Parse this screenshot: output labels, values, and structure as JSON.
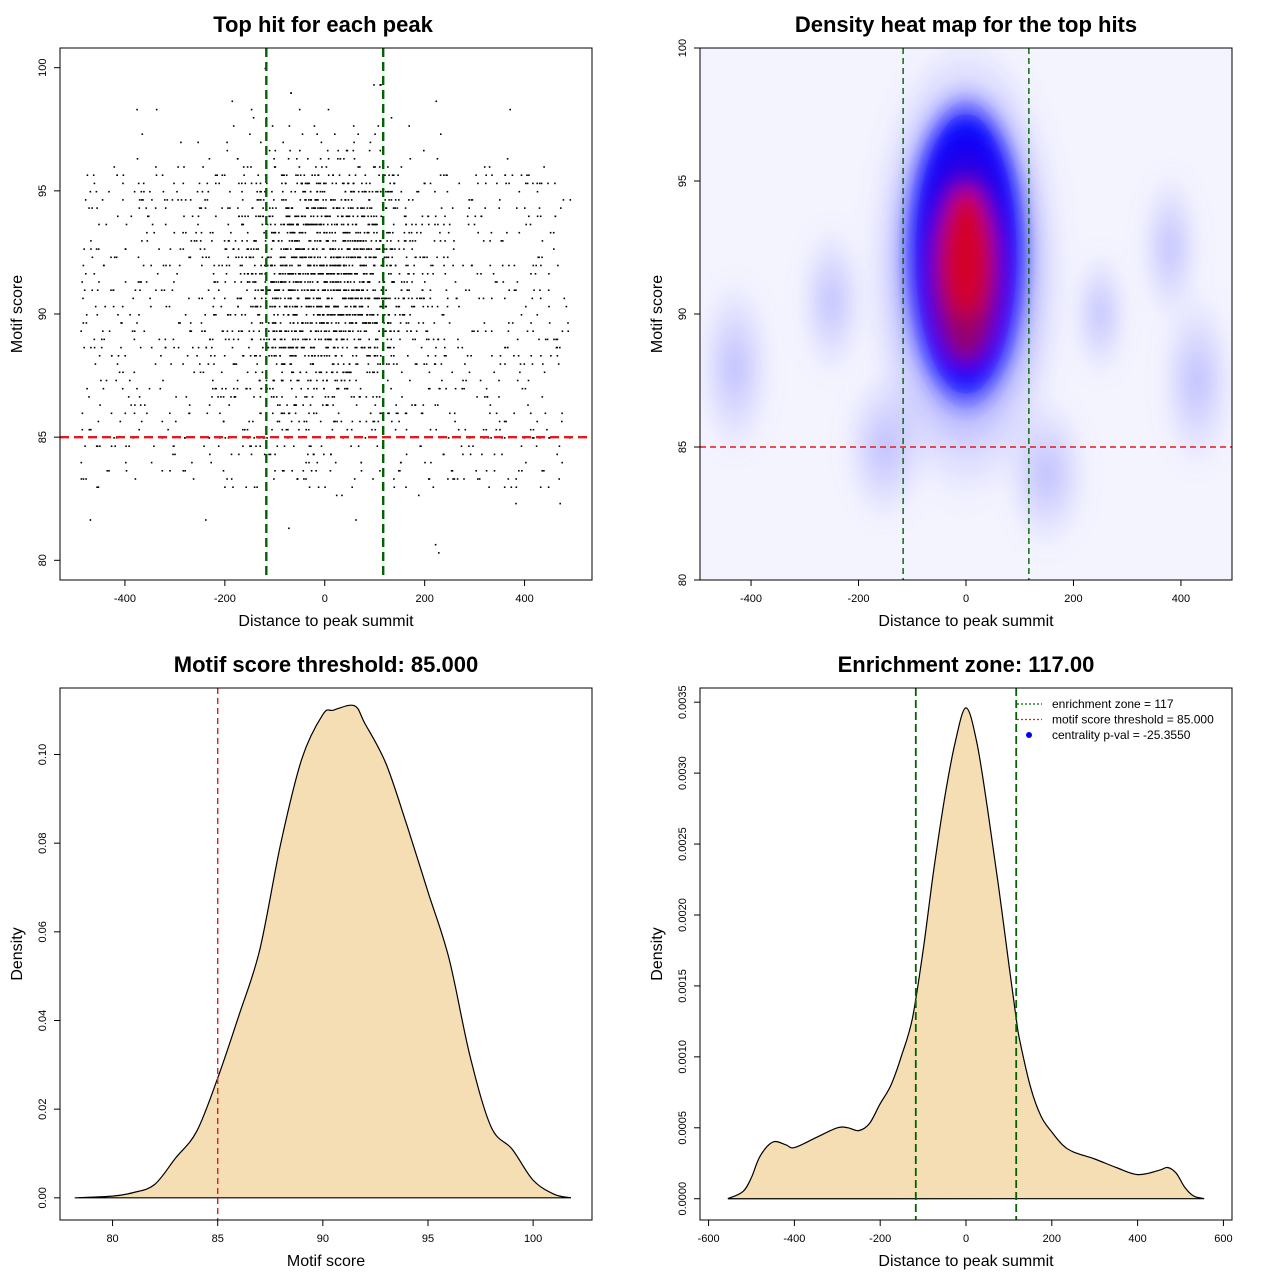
{
  "chart_data": [
    {
      "type": "scatter",
      "title": "Top hit for each peak",
      "xlabel": "Distance to peak summit",
      "ylabel": "Motif score",
      "xlim": [
        -530,
        535
      ],
      "ylim": [
        79.2,
        100.8
      ],
      "xticks": [
        -400,
        -200,
        0,
        200,
        400
      ],
      "xtick_labels": [
        "-400",
        "-200",
        "0",
        "200",
        "400"
      ],
      "yticks": [
        80,
        85,
        90,
        95,
        100
      ],
      "ytick_labels": [
        "80",
        "85",
        "90",
        "95",
        "100"
      ],
      "point_count": 2600,
      "point_distribution": {
        "center_x": 0,
        "sd_x": 95,
        "center_y": 91.5,
        "sd_y": 2.6,
        "background_fraction": 0.42
      },
      "vlines": [
        -117,
        117
      ],
      "hline": 85,
      "colors": {
        "points": "#000000",
        "vline": "#006400",
        "hline": "#e41a1c"
      }
    },
    {
      "type": "heatmap",
      "title": "Density heat map for the top hits",
      "xlabel": "Distance to peak summit",
      "ylabel": "Motif score",
      "xlim": [
        -495,
        495
      ],
      "ylim": [
        80,
        100
      ],
      "xticks": [
        -400,
        -200,
        0,
        200,
        400
      ],
      "xtick_labels": [
        "-400",
        "-200",
        "0",
        "200",
        "400"
      ],
      "yticks": [
        80,
        85,
        90,
        95,
        100
      ],
      "ytick_labels": [
        "80",
        "85",
        "90",
        "95",
        "100"
      ],
      "density_peak": {
        "x": 0,
        "y": 92.3
      },
      "colormap": [
        "#ffffff",
        "#0000ff",
        "#ff0000"
      ],
      "vlines": [
        -117,
        117
      ],
      "hline": 85,
      "colors": {
        "vline": "#006400",
        "hline": "#e41a1c"
      }
    },
    {
      "type": "area",
      "title": "Motif score threshold: 85.000",
      "xlabel": "Motif score",
      "ylabel": "Density",
      "xlim": [
        77.5,
        102.8
      ],
      "ylim": [
        -0.005,
        0.115
      ],
      "xticks": [
        80,
        85,
        90,
        95,
        100
      ],
      "xtick_labels": [
        "80",
        "85",
        "90",
        "95",
        "100"
      ],
      "yticks": [
        0,
        0.02,
        0.04,
        0.06,
        0.08,
        0.1
      ],
      "ytick_labels": [
        "0.00",
        "0.02",
        "0.04",
        "0.06",
        "0.08",
        "0.10"
      ],
      "x": [
        78.2,
        80,
        81,
        82,
        83,
        84,
        85,
        86,
        87,
        88,
        89,
        90,
        90.5,
        91.5,
        92,
        93,
        94,
        95,
        96,
        97,
        98,
        99,
        100,
        101,
        101.8
      ],
      "y": [
        0,
        0.0004,
        0.0012,
        0.003,
        0.009,
        0.015,
        0.027,
        0.041,
        0.056,
        0.08,
        0.099,
        0.109,
        0.11,
        0.111,
        0.107,
        0.098,
        0.084,
        0.069,
        0.054,
        0.032,
        0.016,
        0.011,
        0.004,
        0.0008,
        0
      ],
      "vline": 85,
      "colors": {
        "fill": "#f5deb3",
        "line": "#000000",
        "vline": "#e41a1c"
      }
    },
    {
      "type": "area",
      "title": "Enrichment zone: 117.00",
      "xlabel": "Distance to peak summit",
      "ylabel": "Density",
      "xlim": [
        -620,
        620
      ],
      "ylim": [
        -0.00015,
        0.0036
      ],
      "xticks": [
        -600,
        -400,
        -200,
        0,
        200,
        400,
        600
      ],
      "xtick_labels": [
        "-600",
        "-400",
        "-200",
        "0",
        "200",
        "400",
        "600"
      ],
      "yticks": [
        0,
        0.0005,
        0.001,
        0.0015,
        0.002,
        0.0025,
        0.003,
        0.0035
      ],
      "ytick_labels": [
        "0.0000",
        "0.0005",
        "0.0010",
        "0.0015",
        "0.0020",
        "0.0025",
        "0.0030",
        "0.0035"
      ],
      "x": [
        -555,
        -520,
        -500,
        -480,
        -450,
        -420,
        -400,
        -350,
        -300,
        -275,
        -250,
        -225,
        -200,
        -175,
        -150,
        -125,
        -100,
        -75,
        -50,
        -25,
        0,
        25,
        50,
        75,
        100,
        117,
        125,
        150,
        175,
        200,
        225,
        250,
        300,
        350,
        400,
        450,
        470,
        490,
        510,
        530,
        555
      ],
      "y": [
        0,
        5e-05,
        0.00015,
        0.0003,
        0.0004,
        0.00038,
        0.00036,
        0.00043,
        0.0005,
        0.0005,
        0.00048,
        0.00053,
        0.00067,
        0.0008,
        0.00101,
        0.00127,
        0.00175,
        0.00232,
        0.00282,
        0.00322,
        0.00346,
        0.00322,
        0.00275,
        0.00222,
        0.00165,
        0.00127,
        0.00112,
        0.00079,
        0.00058,
        0.00047,
        0.00038,
        0.00033,
        0.00028,
        0.00022,
        0.00017,
        0.0002,
        0.00022,
        0.00018,
        8e-05,
        2e-05,
        0
      ],
      "vlines": [
        -117,
        117
      ],
      "legend": {
        "position": "top-right",
        "entries": [
          {
            "label": "enrichment zone = 117",
            "style": "dotted",
            "color": "#006400"
          },
          {
            "label": "motif score threshold = 85.000",
            "style": "dotted",
            "color": "#e41a1c"
          },
          {
            "label": "centrality p-val = -25.3550",
            "style": "point",
            "color": "#0000ff"
          }
        ]
      },
      "colors": {
        "fill": "#f5deb3",
        "line": "#000000",
        "vline": "#006400"
      }
    }
  ]
}
